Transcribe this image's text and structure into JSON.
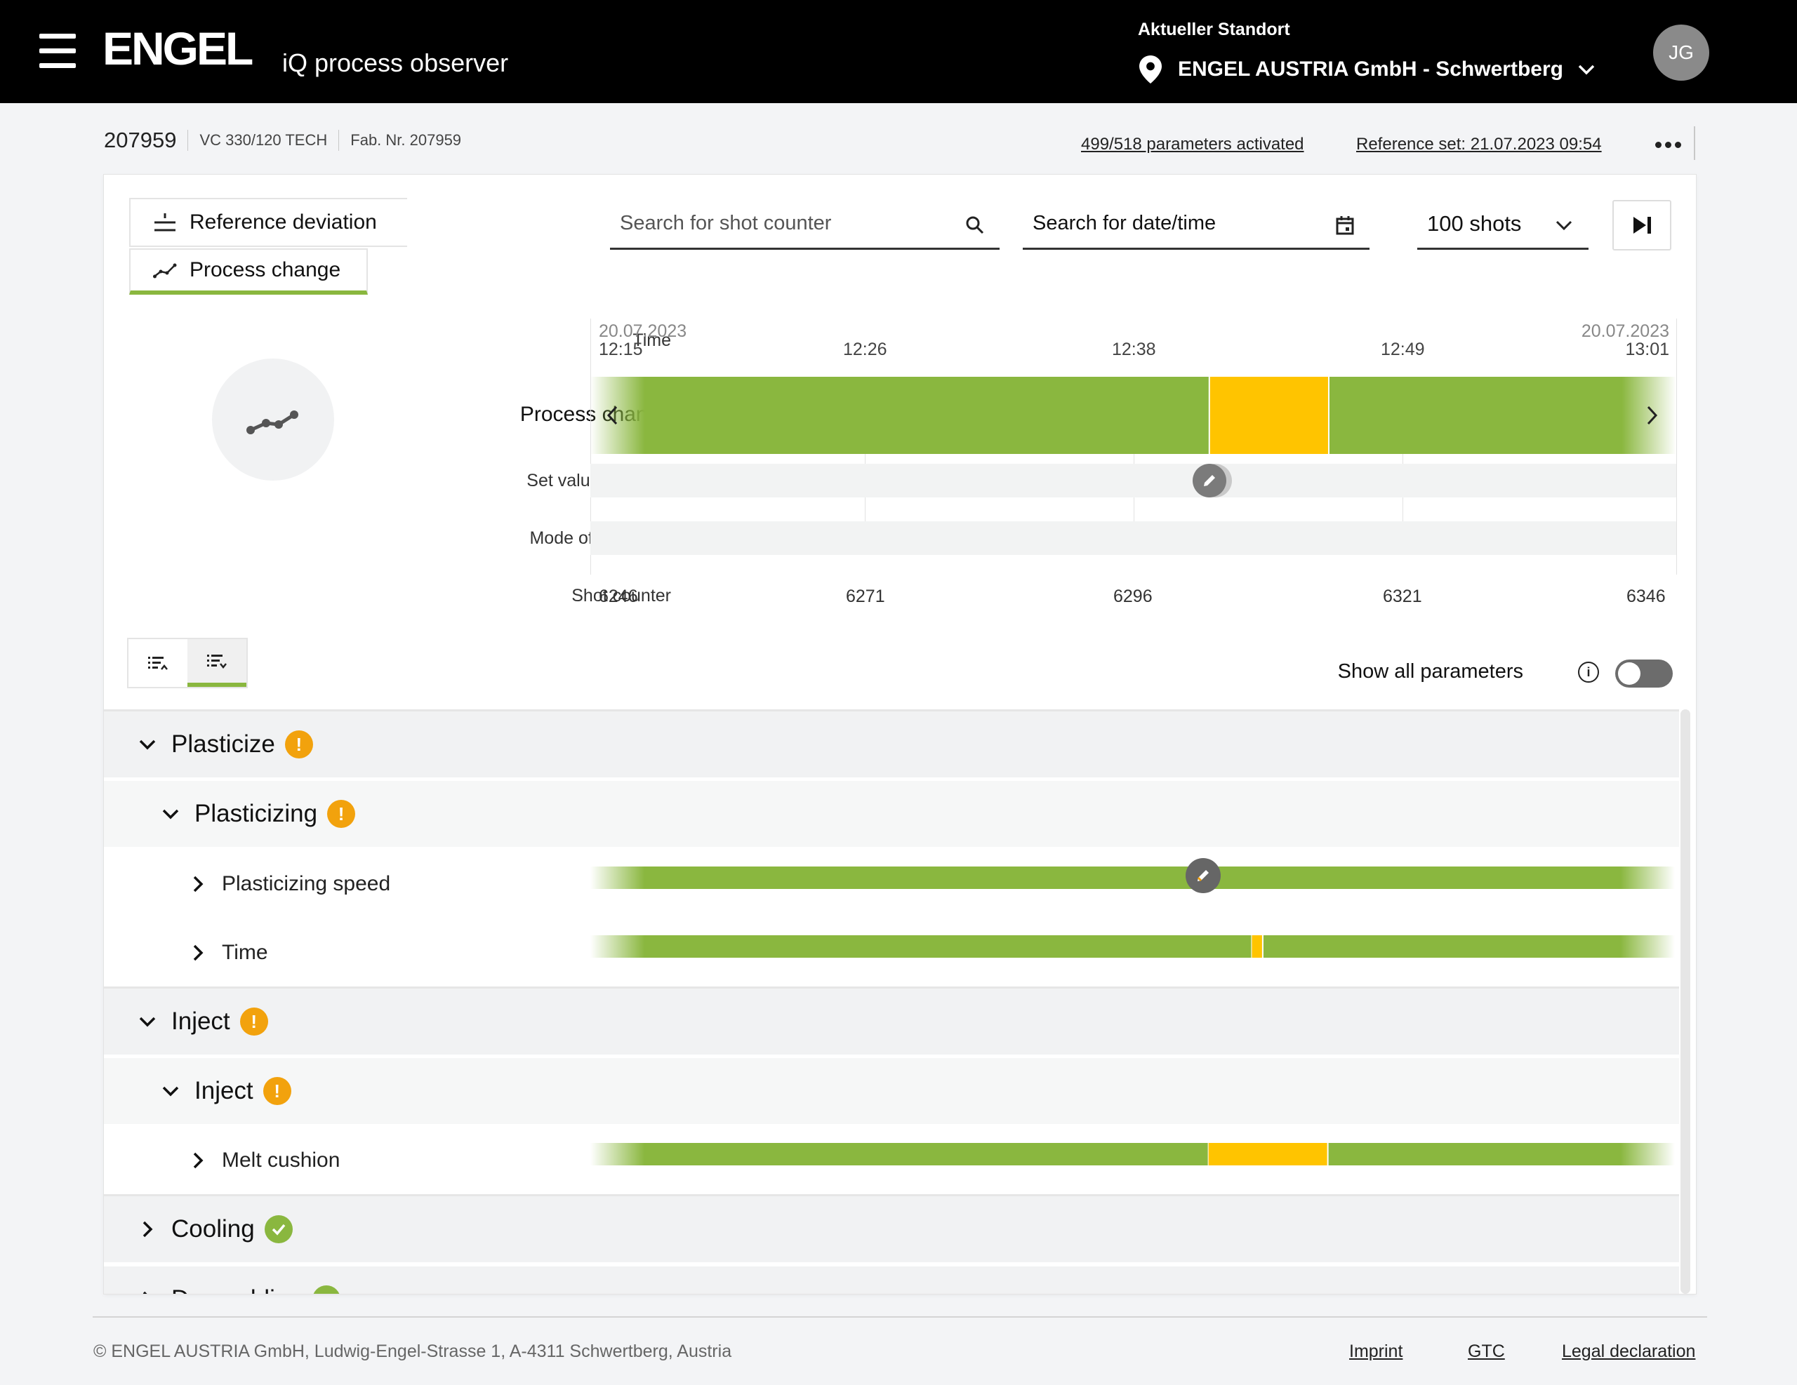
{
  "header": {
    "logo_text": "ENGEL",
    "app_name": "iQ process observer",
    "location_caption": "Aktueller Standort",
    "location_name": "ENGEL AUSTRIA GmbH - Schwertberg",
    "avatar_initials": "JG"
  },
  "machine": {
    "id": "207959",
    "model": "VC 330/120 TECH",
    "fab_no": "Fab. Nr. 207959",
    "parameters_activated": "499/518 parameters activated",
    "reference_set": "Reference set: 21.07.2023 09:54"
  },
  "tabs": {
    "reference_deviation": "Reference deviation",
    "process_change": "Process change",
    "active": "process_change"
  },
  "filters": {
    "shot_counter_placeholder": "Search for shot counter",
    "datetime_placeholder": "Search for date/time",
    "shots_selected": "100 shots"
  },
  "timeline": {
    "row_labels": {
      "time": "Time",
      "process_change": "Process change",
      "set_value_changes": "Set value changes",
      "mode_of_operation": "Mode of operation",
      "shot_counter": "Shot counter"
    },
    "start_date": "20.07.2023",
    "end_date": "20.07.2023",
    "time_ticks": [
      "12:15",
      "12:26",
      "12:38",
      "12:49",
      "13:01"
    ],
    "shot_ticks": [
      "6246",
      "6271",
      "6296",
      "6321",
      "6346"
    ],
    "process_change_segments": [
      {
        "from_shot": 6246,
        "to_shot": 6303,
        "status": "ok"
      },
      {
        "from_shot": 6303,
        "to_shot": 6314,
        "status": "warning"
      },
      {
        "from_shot": 6314,
        "to_shot": 6346,
        "status": "ok"
      }
    ],
    "set_value_change_shot": 6303
  },
  "parameters": {
    "show_all_label": "Show all parameters",
    "show_all_enabled": false,
    "groups": [
      {
        "name": "Plasticize",
        "status": "warning",
        "expanded": true
      },
      {
        "name": "Plasticizing",
        "status": "warning",
        "expanded": true
      },
      {
        "name": "Plasticizing speed",
        "type": "param",
        "has_set_value_change": true
      },
      {
        "name": "Time",
        "type": "param",
        "deviation_range": [
          6307,
          6308
        ]
      },
      {
        "name": "Inject",
        "status": "warning",
        "expanded": true
      },
      {
        "name": "Inject",
        "status": "warning",
        "expanded": true
      },
      {
        "name": "Melt cushion",
        "type": "param",
        "deviation_range": [
          6303,
          6314
        ]
      },
      {
        "name": "Cooling",
        "status": "ok",
        "expanded": false
      },
      {
        "name": "Demoulding",
        "status": "ok",
        "expanded": false
      }
    ]
  },
  "colors": {
    "ok": "#8ab73f",
    "warning": "#ffc400",
    "badge_warning": "#f2a20d",
    "header_bg": "#000000"
  },
  "footer": {
    "copyright": "© ENGEL AUSTRIA GmbH, Ludwig-Engel-Strasse 1, A-4311 Schwertberg, Austria",
    "imprint": "Imprint",
    "gtc": "GTC",
    "legal": "Legal declaration"
  }
}
